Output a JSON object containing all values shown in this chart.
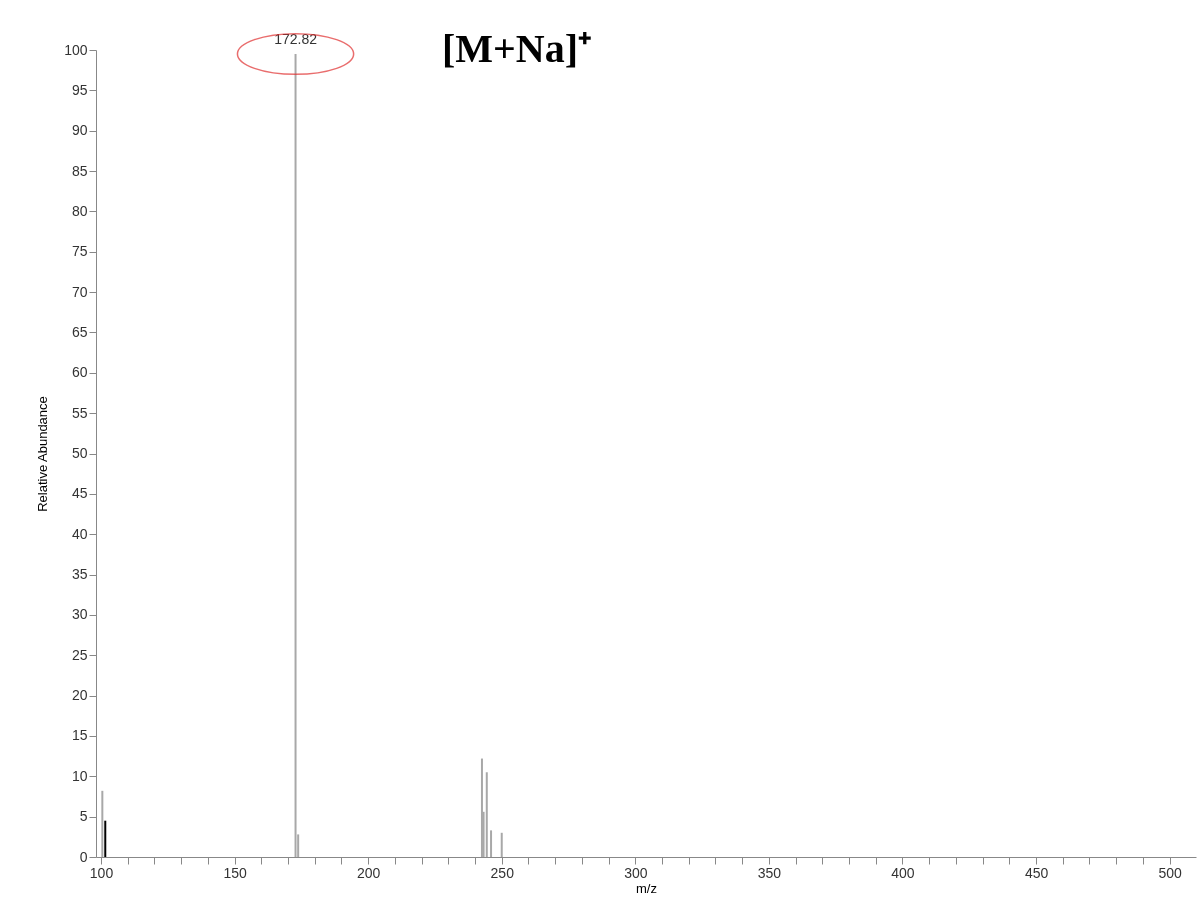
{
  "chart_data": {
    "type": "bar",
    "xlabel": "m/z",
    "ylabel": "Relative Abundance",
    "xlim": [
      100,
      508
    ],
    "ylim": [
      0,
      100
    ],
    "xticks": [
      100,
      {
        "value": 110,
        "label": null
      },
      {
        "value": 120,
        "label": null
      },
      {
        "value": 130,
        "label": null
      },
      {
        "value": 140,
        "label": null
      },
      150,
      {
        "value": 160,
        "label": null
      },
      {
        "value": 170,
        "label": null
      },
      {
        "value": 180,
        "label": null
      },
      {
        "value": 190,
        "label": null
      },
      200,
      {
        "value": 210,
        "label": null
      },
      {
        "value": 220,
        "label": null
      },
      {
        "value": 230,
        "label": null
      },
      {
        "value": 240,
        "label": null
      },
      250,
      {
        "value": 260,
        "label": null
      },
      {
        "value": 270,
        "label": null
      },
      {
        "value": 280,
        "label": null
      },
      {
        "value": 290,
        "label": null
      },
      300,
      {
        "value": 310,
        "label": null
      },
      {
        "value": 320,
        "label": null
      },
      {
        "value": 330,
        "label": null
      },
      {
        "value": 340,
        "label": null
      },
      350,
      {
        "value": 360,
        "label": null
      },
      {
        "value": 370,
        "label": null
      },
      {
        "value": 380,
        "label": null
      },
      {
        "value": 390,
        "label": null
      },
      400,
      {
        "value": 410,
        "label": null
      },
      {
        "value": 420,
        "label": null
      },
      {
        "value": 430,
        "label": null
      },
      {
        "value": 440,
        "label": null
      },
      450,
      {
        "value": 460,
        "label": null
      },
      {
        "value": 470,
        "label": null
      },
      {
        "value": 480,
        "label": null
      },
      {
        "value": 490,
        "label": null
      },
      500
    ],
    "yticks": [
      0,
      5,
      10,
      15,
      20,
      25,
      30,
      35,
      40,
      45,
      50,
      55,
      60,
      65,
      70,
      75,
      80,
      85,
      90,
      95,
      100
    ],
    "series": [
      {
        "color": "#a8a8a8",
        "x": [
          100.5,
          172.82,
          173.8,
          242.6,
          243.2,
          244.4,
          246,
          250
        ],
        "values": [
          8.2,
          99.5,
          2.8,
          12.2,
          5.6,
          10.5,
          3.3,
          3.0
        ]
      },
      {
        "color": "#000000",
        "x": [
          101.6
        ],
        "values": [
          4.5
        ]
      }
    ],
    "annotations": [
      {
        "text": "172.82",
        "x": 172.82,
        "y": 99.5
      },
      "[M+Na]⁺"
    ],
    "grid": false
  }
}
